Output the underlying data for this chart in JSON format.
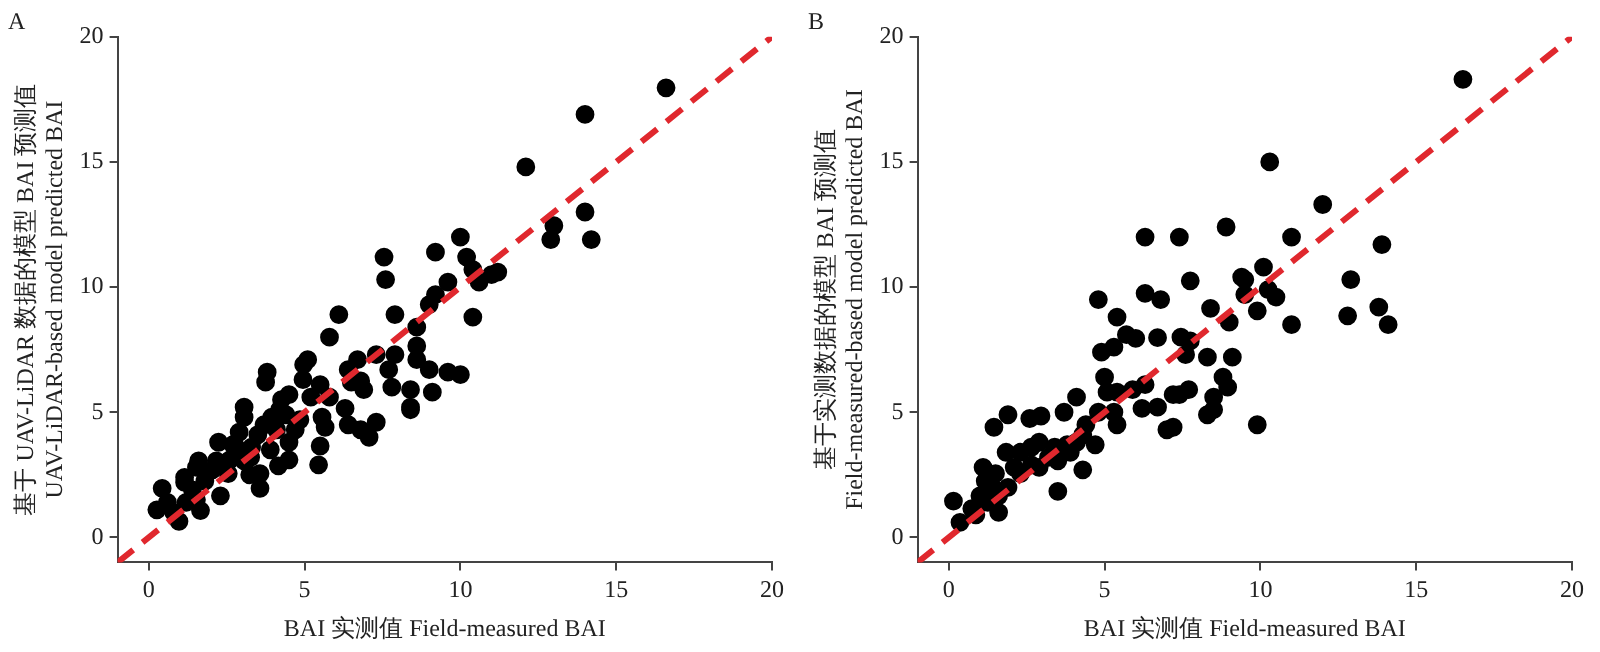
{
  "chart_data": [
    {
      "type": "scatter",
      "title": "A",
      "xlabel": "BAI 实测值 Field-measured BAI",
      "ylabel": "基于 UAV-LiDAR 数据的模型 BAI 预测值\nUAV-LiDAR-based model predicted BAI",
      "xlim": [
        -1,
        20
      ],
      "ylim": [
        -1,
        20
      ],
      "xticks": [
        0,
        5,
        10,
        15,
        20
      ],
      "yticks": [
        0,
        5,
        10,
        15,
        20
      ],
      "grid": false,
      "series": [
        {
          "type": "scatter",
          "color": "#000000",
          "marker": "circle",
          "x": [
            16.6,
            14.0,
            12.1,
            14.0,
            13.0,
            12.9,
            14.2,
            10.0,
            7.55,
            7.6,
            9.2,
            10.2,
            10.4,
            11.2,
            11.0,
            10.6,
            9.6,
            9.2,
            9.0,
            10.4,
            7.9,
            6.1,
            5.8,
            8.6,
            8.6,
            5.1,
            4.97,
            6.7,
            7.3,
            7.9,
            8.6,
            7.7,
            6.4,
            9.0,
            9.6,
            10.0,
            3.8,
            3.75,
            4.95,
            5.5,
            6.5,
            6.8,
            6.9,
            7.8,
            8.4,
            9.1,
            8.4,
            8.4,
            5.8,
            5.2,
            4.26,
            4.5,
            3.06,
            3.06,
            4.2,
            4.4,
            4.85,
            6.3,
            5.56,
            5.66,
            6.4,
            6.8,
            7.07,
            7.3,
            3.7,
            4.1,
            4.5,
            5.5,
            5.45,
            4.5,
            4.16,
            3.5,
            2.9,
            2.8,
            2.24,
            3.3,
            3.27,
            3.57,
            3.57,
            3.24,
            2.6,
            2.17,
            2.04,
            1.6,
            1.53,
            1.15,
            1.15,
            1.8,
            2.3,
            0.43,
            0.26,
            0.8,
            0.97,
            1.53,
            1.66,
            1.2,
            1.4,
            0.6,
            2.55,
            3.06,
            2.7,
            3.9,
            3.95,
            4.7
          ],
          "values": [
            17.96,
            16.9,
            14.8,
            13.0,
            12.45,
            11.9,
            11.9,
            12.0,
            11.2,
            10.3,
            11.4,
            11.2,
            10.7,
            10.6,
            10.5,
            10.2,
            10.2,
            9.7,
            9.3,
            8.8,
            8.9,
            8.9,
            8.0,
            8.4,
            7.65,
            7.1,
            6.9,
            7.1,
            7.3,
            7.3,
            7.1,
            6.7,
            6.7,
            6.7,
            6.6,
            6.5,
            6.6,
            6.2,
            6.3,
            6.1,
            6.2,
            6.25,
            5.9,
            6.0,
            5.9,
            5.8,
            5.2,
            5.1,
            5.6,
            5.6,
            5.5,
            5.7,
            5.2,
            4.8,
            5.1,
            4.9,
            4.7,
            5.15,
            4.8,
            4.4,
            4.5,
            4.3,
            4.0,
            4.6,
            4.5,
            4.3,
            3.8,
            3.65,
            2.9,
            3.1,
            2.86,
            4.1,
            4.2,
            3.6,
            3.8,
            3.6,
            3.2,
            2.55,
            1.96,
            2.5,
            3.1,
            3.06,
            2.7,
            3.06,
            2.8,
            2.4,
            2.2,
            2.25,
            1.66,
            1.96,
            1.1,
            1.0,
            0.64,
            1.5,
            1.07,
            1.4,
            1.9,
            1.4,
            2.55,
            3.06,
            3.7,
            3.5,
            4.8,
            4.3
          ]
        },
        {
          "type": "line",
          "color": "#e0282e",
          "line_style": "dashed",
          "x": [
            -1,
            20
          ],
          "values": [
            -1,
            20
          ]
        }
      ]
    },
    {
      "type": "scatter",
      "title": "B",
      "xlabel": "BAI 实测值 Field-measured BAI",
      "ylabel": "基于实测数据的模型 BAI 预测值\nField-measured-based model predicted BAI",
      "xlim": [
        -1,
        20
      ],
      "ylim": [
        -1,
        20
      ],
      "xticks": [
        0,
        5,
        10,
        15,
        20
      ],
      "yticks": [
        0,
        5,
        10,
        15,
        20
      ],
      "grid": false,
      "series": [
        {
          "type": "scatter",
          "color": "#000000",
          "marker": "circle",
          "x": [
            16.5,
            10.3,
            12.0,
            6.3,
            7.4,
            8.9,
            11.0,
            13.9,
            10.1,
            9.4,
            9.5,
            7.75,
            12.9,
            9.5,
            10.25,
            10.5,
            9.9,
            13.8,
            12.8,
            14.1,
            11.0,
            4.8,
            6.3,
            6.8,
            8.4,
            9.0,
            5.4,
            5.7,
            6.0,
            6.7,
            7.45,
            7.75,
            7.6,
            8.3,
            9.1,
            5.3,
            4.9,
            5.0,
            6.3,
            5.08,
            5.4,
            5.9,
            7.2,
            7.4,
            7.7,
            8.8,
            8.95,
            8.5,
            8.5,
            8.3,
            6.2,
            6.7,
            5.3,
            5.4,
            7.0,
            7.2,
            9.9,
            4.1,
            3.7,
            4.8,
            2.96,
            2.6,
            1.9,
            1.45,
            4.4,
            4.3,
            4.1,
            3.8,
            4.7,
            4.3,
            3.4,
            2.9,
            2.65,
            2.3,
            1.84,
            3.2,
            3.5,
            2.65,
            2.1,
            1.1,
            1.5,
            1.17,
            1.9,
            3.5,
            0.15,
            1.0,
            1.25,
            0.74,
            0.36,
            0.87,
            1.6,
            1.6,
            2.3,
            2.9,
            3.9,
            1.5
          ],
          "values": [
            18.3,
            15.0,
            13.3,
            12.0,
            12.0,
            12.4,
            12.0,
            11.7,
            10.8,
            10.4,
            10.3,
            10.25,
            10.3,
            9.7,
            9.9,
            9.6,
            9.05,
            9.2,
            8.85,
            8.5,
            8.5,
            9.5,
            9.75,
            9.5,
            9.15,
            8.6,
            8.8,
            8.1,
            7.95,
            7.98,
            8.0,
            7.85,
            7.3,
            7.2,
            7.2,
            7.6,
            7.4,
            6.4,
            6.1,
            5.8,
            5.8,
            5.9,
            5.7,
            5.7,
            5.9,
            6.4,
            6.0,
            5.6,
            5.1,
            4.9,
            5.15,
            5.2,
            5.0,
            4.5,
            4.3,
            4.4,
            4.5,
            5.6,
            5.0,
            5.0,
            4.85,
            4.75,
            4.9,
            4.4,
            4.5,
            4.1,
            3.8,
            3.7,
            3.7,
            2.7,
            3.6,
            3.8,
            3.6,
            3.4,
            3.4,
            3.2,
            3.06,
            2.9,
            2.8,
            2.8,
            2.55,
            2.25,
            2.0,
            1.84,
            1.45,
            1.66,
            1.4,
            1.15,
            0.6,
            0.9,
            1.0,
            1.66,
            2.55,
            2.8,
            3.4,
            1.9
          ]
        },
        {
          "type": "line",
          "color": "#e0282e",
          "line_style": "dashed",
          "x": [
            -1,
            20
          ],
          "values": [
            -1,
            20
          ]
        }
      ]
    }
  ]
}
